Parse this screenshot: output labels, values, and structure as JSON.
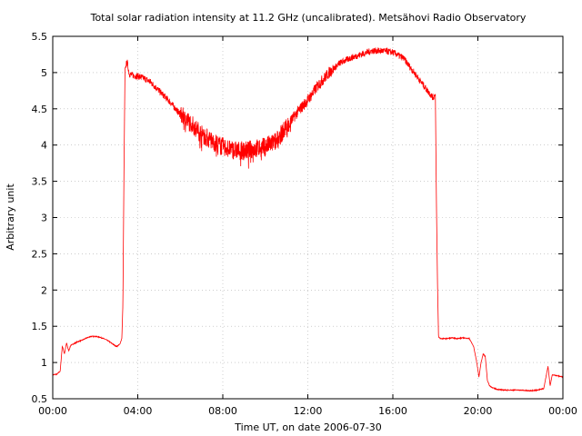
{
  "chart_data": {
    "type": "line",
    "title": "Total solar radiation intensity at 11.2 GHz (uncalibrated). Metsähovi Radio Observatory",
    "xlabel": "Time UT, on date 2006-07-30",
    "ylabel": "Arbitrary unit",
    "xlim": [
      0,
      24
    ],
    "ylim": [
      0.5,
      5.5
    ],
    "grid": true,
    "x_ticks": [
      {
        "value": 0,
        "label": "00:00"
      },
      {
        "value": 4,
        "label": "04:00"
      },
      {
        "value": 8,
        "label": "08:00"
      },
      {
        "value": 12,
        "label": "12:00"
      },
      {
        "value": 16,
        "label": "16:00"
      },
      {
        "value": 20,
        "label": "20:00"
      },
      {
        "value": 24,
        "label": "00:00"
      }
    ],
    "y_ticks": [
      {
        "value": 0.5,
        "label": "0.5"
      },
      {
        "value": 1,
        "label": "1"
      },
      {
        "value": 1.5,
        "label": "1.5"
      },
      {
        "value": 2,
        "label": "2"
      },
      {
        "value": 2.5,
        "label": "2.5"
      },
      {
        "value": 3,
        "label": "3"
      },
      {
        "value": 3.5,
        "label": "3.5"
      },
      {
        "value": 4,
        "label": "4"
      },
      {
        "value": 4.5,
        "label": "4.5"
      },
      {
        "value": 5,
        "label": "5"
      },
      {
        "value": 5.5,
        "label": "5.5"
      }
    ],
    "series": [
      {
        "color": "#ff0000",
        "x": [
          0.0,
          0.2,
          0.35,
          0.45,
          0.55,
          0.65,
          0.75,
          0.85,
          1.0,
          1.2,
          1.4,
          1.6,
          1.8,
          2.0,
          2.2,
          2.4,
          2.6,
          2.8,
          3.0,
          3.15,
          3.25,
          3.3,
          3.35,
          3.4,
          3.5,
          3.6,
          3.8,
          4.0,
          4.3,
          4.6,
          5.0,
          5.5,
          6.0,
          6.5,
          7.0,
          7.5,
          8.0,
          8.5,
          9.0,
          9.5,
          10.0,
          10.5,
          11.0,
          11.5,
          12.0,
          12.5,
          13.0,
          13.5,
          14.0,
          14.5,
          15.0,
          15.5,
          16.0,
          16.5,
          17.0,
          17.5,
          17.9,
          18.0,
          18.05,
          18.1,
          18.15,
          18.25,
          18.5,
          18.8,
          19.0,
          19.3,
          19.6,
          19.8,
          19.95,
          20.05,
          20.15,
          20.25,
          20.35,
          20.45,
          20.55,
          20.7,
          20.9,
          21.2,
          21.6,
          22.0,
          22.4,
          22.8,
          23.1,
          23.3,
          23.4,
          23.5,
          23.7,
          24.0
        ],
        "y": [
          0.83,
          0.84,
          0.88,
          1.23,
          1.12,
          1.27,
          1.16,
          1.24,
          1.26,
          1.29,
          1.31,
          1.34,
          1.36,
          1.36,
          1.35,
          1.33,
          1.3,
          1.26,
          1.22,
          1.25,
          1.33,
          1.8,
          3.6,
          5.05,
          5.15,
          4.98,
          4.96,
          4.95,
          4.92,
          4.87,
          4.75,
          4.6,
          4.42,
          4.3,
          4.15,
          4.05,
          3.98,
          3.93,
          3.92,
          3.95,
          3.98,
          4.05,
          4.25,
          4.45,
          4.62,
          4.83,
          5.0,
          5.13,
          5.2,
          5.25,
          5.3,
          5.3,
          5.28,
          5.2,
          5.0,
          4.8,
          4.65,
          4.7,
          3.2,
          2.1,
          1.35,
          1.33,
          1.33,
          1.34,
          1.33,
          1.34,
          1.33,
          1.22,
          1.0,
          0.8,
          1.0,
          1.12,
          1.08,
          0.75,
          0.68,
          0.65,
          0.63,
          0.62,
          0.62,
          0.62,
          0.61,
          0.62,
          0.64,
          0.95,
          0.68,
          0.83,
          0.82,
          0.8
        ]
      }
    ]
  }
}
